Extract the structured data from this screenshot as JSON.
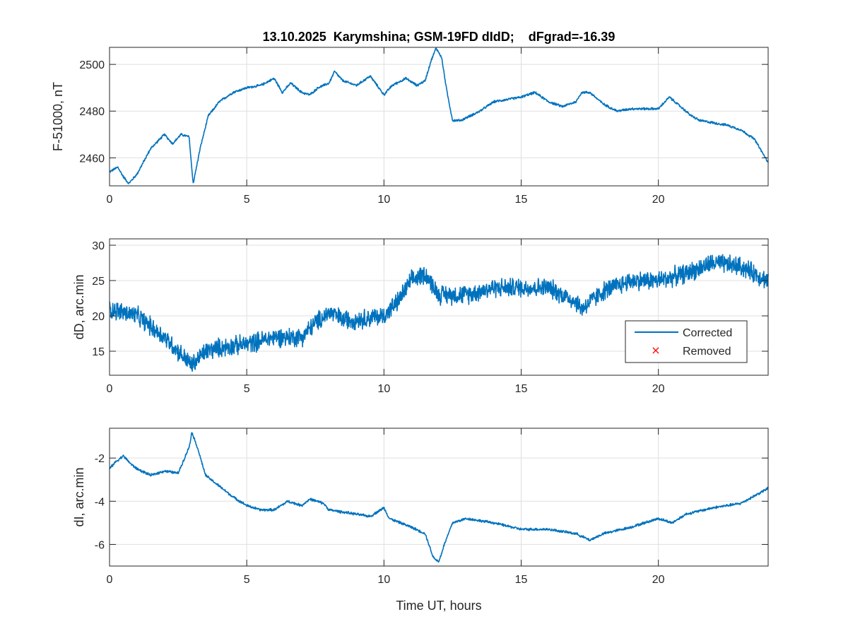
{
  "chart_data": [
    {
      "type": "line",
      "title": "13.10.2025  Karymshina; GSM-19FD dIdD;    dFgrad=-16.39",
      "xlabel": "",
      "ylabel": "F-51000, nT",
      "xlim": [
        0,
        24
      ],
      "ylim": [
        2448,
        2507.3
      ],
      "xticks": [
        0,
        5,
        10,
        15,
        20
      ],
      "yticks": [
        2460,
        2480,
        2500
      ],
      "grid": true,
      "color": "#0072BD",
      "noise": 0.6,
      "series": [
        {
          "name": "Corrected",
          "x": [
            0,
            0.3,
            0.5,
            0.7,
            1.0,
            1.5,
            2.0,
            2.3,
            2.6,
            2.9,
            3.0,
            3.05,
            3.3,
            3.6,
            4.0,
            4.5,
            5,
            5.5,
            6,
            6.3,
            6.6,
            7,
            7.3,
            7.6,
            8,
            8.2,
            8.5,
            9,
            9.5,
            10,
            10.3,
            10.8,
            11.2,
            11.5,
            11.7,
            11.9,
            12.1,
            12.3,
            12.5,
            12.8,
            13.5,
            14,
            15,
            15.5,
            16,
            16.5,
            17,
            17.2,
            17.5,
            18,
            18.5,
            19,
            19.5,
            20,
            20.4,
            20.8,
            21.2,
            21.5,
            22,
            22.5,
            23,
            23.5,
            24
          ],
          "y": [
            2454,
            2456,
            2452,
            2449,
            2453,
            2464,
            2470,
            2466,
            2470,
            2469,
            2455,
            2449,
            2464,
            2478,
            2484,
            2488,
            2490,
            2491,
            2494,
            2488,
            2492,
            2488,
            2487,
            2490,
            2492,
            2497,
            2493,
            2491,
            2495,
            2487,
            2491,
            2494,
            2491,
            2493,
            2501,
            2507,
            2503,
            2488,
            2476,
            2476,
            2480,
            2484,
            2486,
            2488,
            2484,
            2482,
            2484,
            2488,
            2488,
            2483,
            2480,
            2481,
            2481,
            2481,
            2486,
            2482,
            2478,
            2476,
            2475,
            2474,
            2472,
            2468,
            2458
          ]
        }
      ]
    },
    {
      "type": "line",
      "title": "",
      "xlabel": "",
      "ylabel": "dD, arc.min",
      "xlim": [
        0,
        24
      ],
      "ylim": [
        11.6,
        30.9
      ],
      "xticks": [
        0,
        5,
        10,
        15,
        20
      ],
      "yticks": [
        15,
        20,
        25,
        30
      ],
      "grid": true,
      "color": "#0072BD",
      "noise": 1.6,
      "legend": {
        "position": "lower-right",
        "entries": [
          "Corrected",
          "Removed"
        ],
        "removed_color": "#FF0000"
      },
      "series": [
        {
          "name": "Corrected",
          "x": [
            0,
            1,
            2,
            2.5,
            3,
            3.5,
            4,
            5,
            6,
            7,
            7.5,
            8,
            8.5,
            9,
            10,
            10.5,
            11,
            11.5,
            12,
            13,
            14,
            15,
            16,
            17,
            17.2,
            18,
            19,
            20,
            21,
            22,
            23,
            24
          ],
          "y": [
            21,
            20,
            17,
            15,
            13,
            15,
            15.5,
            16,
            17,
            17,
            19,
            20.5,
            19.5,
            19.5,
            20,
            22,
            25,
            26,
            23,
            23,
            24,
            24,
            24,
            22,
            21,
            23.5,
            25,
            25,
            26,
            27.5,
            27,
            25
          ]
        },
        {
          "name": "Removed",
          "x": [],
          "y": []
        }
      ]
    },
    {
      "type": "line",
      "title": "",
      "xlabel": "Time UT, hours",
      "ylabel": "dI, arc.min",
      "xlim": [
        0,
        24
      ],
      "ylim": [
        -7.0,
        -0.62
      ],
      "xticks": [
        0,
        5,
        10,
        15,
        20
      ],
      "yticks": [
        -6,
        -4,
        -2
      ],
      "grid": true,
      "color": "#0072BD",
      "noise": 0.07,
      "series": [
        {
          "name": "Corrected",
          "x": [
            0,
            0.2,
            0.5,
            0.8,
            1,
            1.5,
            2,
            2.5,
            2.9,
            3,
            3.2,
            3.5,
            4,
            4.5,
            5,
            5.5,
            6,
            6.5,
            7,
            7.3,
            7.8,
            8,
            9,
            9.5,
            10,
            10.2,
            11,
            11.5,
            11.8,
            12,
            12.2,
            12.5,
            13,
            14,
            15,
            16,
            17,
            17.5,
            18,
            19,
            20,
            20.5,
            21,
            22,
            23,
            24
          ],
          "y": [
            -2.5,
            -2.2,
            -1.9,
            -2.3,
            -2.5,
            -2.8,
            -2.6,
            -2.7,
            -1.5,
            -0.8,
            -1.5,
            -2.8,
            -3.3,
            -3.8,
            -4.2,
            -4.4,
            -4.4,
            -4.0,
            -4.2,
            -3.9,
            -4.1,
            -4.4,
            -4.6,
            -4.7,
            -4.3,
            -4.8,
            -5.2,
            -5.5,
            -6.6,
            -6.8,
            -6.0,
            -5.0,
            -4.8,
            -5.0,
            -5.3,
            -5.3,
            -5.5,
            -5.8,
            -5.5,
            -5.2,
            -4.8,
            -5.0,
            -4.6,
            -4.3,
            -4.1,
            -3.4
          ]
        }
      ]
    }
  ]
}
